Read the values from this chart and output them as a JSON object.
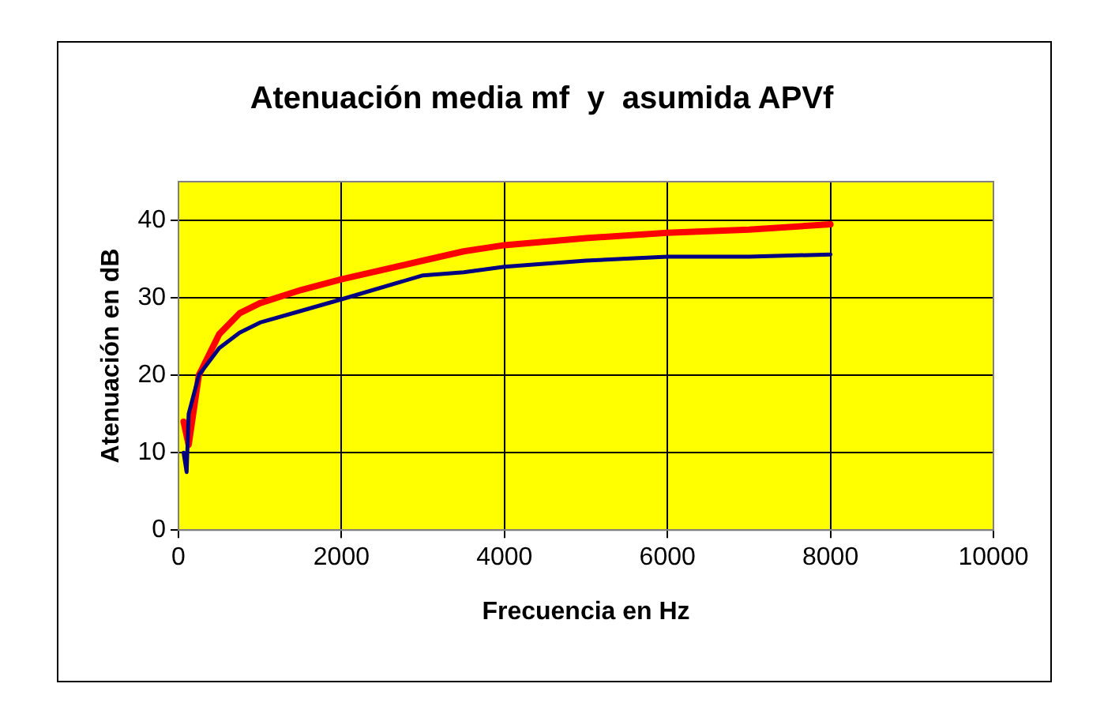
{
  "chart_data": {
    "type": "line",
    "title": "Atenuación media mf  y  asumida APVf",
    "xlabel": "Frecuencia en Hz",
    "ylabel": "Atenuación en dB",
    "xlim": [
      0,
      10000
    ],
    "xticks": [
      0,
      2000,
      4000,
      6000,
      8000,
      10000
    ],
    "ylim": [
      0,
      45
    ],
    "yticks": [
      0,
      10,
      20,
      30,
      40
    ],
    "grid": true,
    "legend": false,
    "marker": "none",
    "series": [
      {
        "color": "#000080",
        "x": [
          63,
          100,
          125,
          250,
          500,
          750,
          1000,
          1500,
          2000,
          3000,
          3500,
          4000,
          5000,
          6000,
          7000,
          8000
        ],
        "values": [
          10,
          7.5,
          15,
          20,
          23.5,
          25.5,
          26.8,
          28.3,
          29.8,
          32.9,
          33.3,
          34,
          34.8,
          35.3,
          35.3,
          35.6
        ]
      },
      {
        "color": "#ff0000",
        "x": [
          63,
          125,
          250,
          500,
          750,
          1000,
          1500,
          2000,
          3000,
          3500,
          4000,
          5000,
          6000,
          7000,
          8000
        ],
        "values": [
          14,
          11,
          20,
          25.3,
          28,
          29.3,
          31,
          32.4,
          34.8,
          36,
          36.8,
          37.7,
          38.4,
          38.8,
          39.5
        ]
      }
    ]
  }
}
